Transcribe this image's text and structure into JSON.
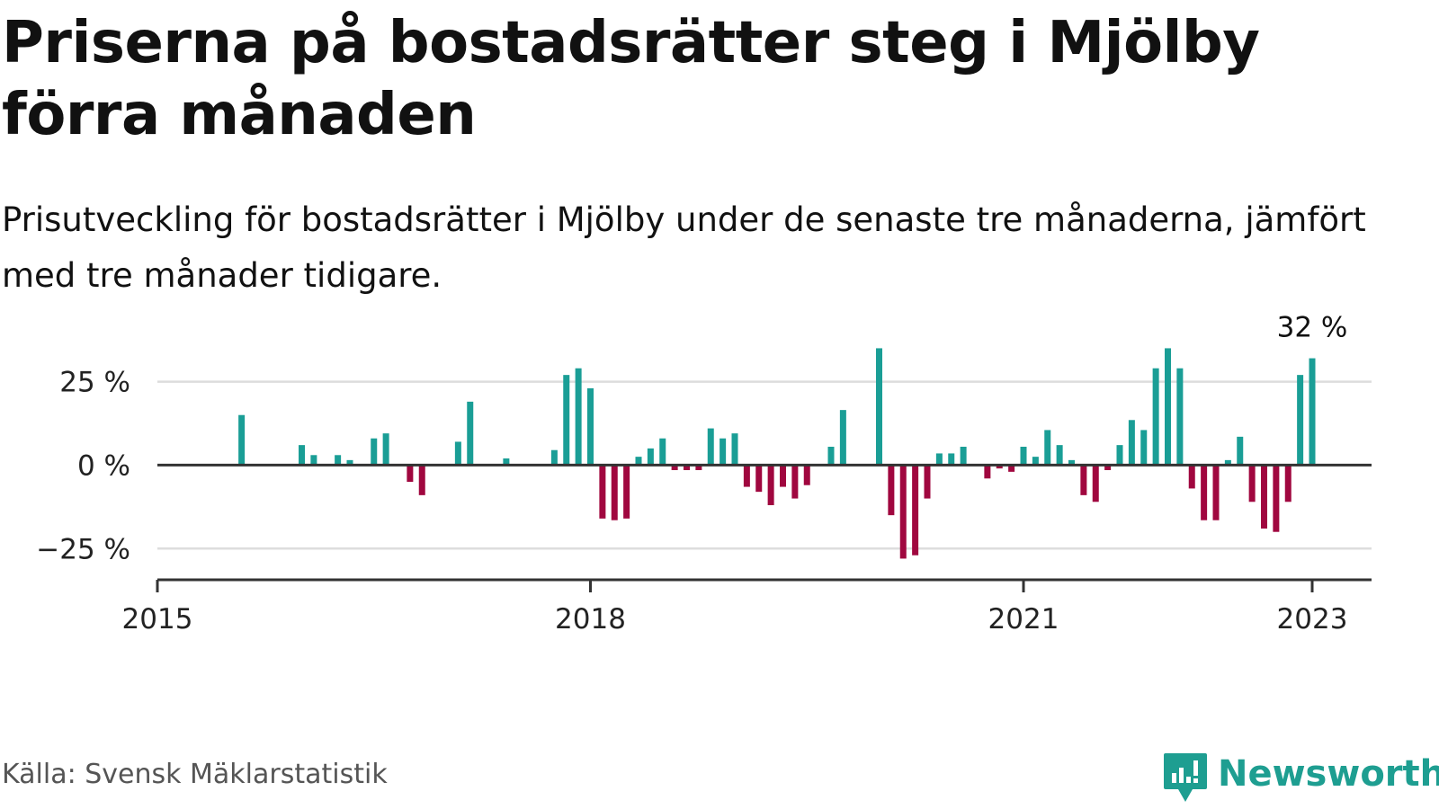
{
  "title": "Priserna på bostadsrätter steg i Mjölby förra månaden",
  "subtitle": "Prisutveckling för bostadsrätter i Mjölby under de senaste tre månaderna, jämfört med tre månader tidigare.",
  "source": "Källa: Svensk Mäklarstatistik",
  "brand": {
    "name": "Newsworthy",
    "icon": "newsworthy-logo-icon"
  },
  "colors": {
    "positive": "#1a9e96",
    "negative": "#a0073f",
    "grid": "#dddddd",
    "axis": "#333333",
    "brand": "#1e9e91"
  },
  "chart_data": {
    "type": "bar",
    "ylabel": "",
    "xlabel": "",
    "ylim": [
      -33,
      37
    ],
    "yticks": [
      {
        "value": 25,
        "label": "25 %"
      },
      {
        "value": 0,
        "label": "0 %"
      },
      {
        "value": -25,
        "label": "−25 %"
      }
    ],
    "xticks": [
      {
        "value": "2015-01",
        "label": "2015"
      },
      {
        "value": "2018-01",
        "label": "2018"
      },
      {
        "value": "2021-01",
        "label": "2021"
      },
      {
        "value": "2023-01",
        "label": "2023"
      }
    ],
    "x_start": "2015-01",
    "x_end": "2023-05",
    "grid": "horizontal",
    "annotation": {
      "label": "32 %",
      "at": "2023-01"
    },
    "series": [
      {
        "values": [
          {
            "x": "2015-08",
            "y": 15
          },
          {
            "x": "2016-01",
            "y": 6
          },
          {
            "x": "2016-02",
            "y": 3
          },
          {
            "x": "2016-04",
            "y": 3
          },
          {
            "x": "2016-05",
            "y": 1.5
          },
          {
            "x": "2016-07",
            "y": 8
          },
          {
            "x": "2016-08",
            "y": 9.5
          },
          {
            "x": "2016-10",
            "y": -5
          },
          {
            "x": "2016-11",
            "y": -9
          },
          {
            "x": "2017-02",
            "y": 7
          },
          {
            "x": "2017-03",
            "y": 19
          },
          {
            "x": "2017-06",
            "y": 2
          },
          {
            "x": "2017-10",
            "y": 4.5
          },
          {
            "x": "2017-11",
            "y": 27
          },
          {
            "x": "2017-12",
            "y": 29
          },
          {
            "x": "2018-01",
            "y": 23
          },
          {
            "x": "2018-02",
            "y": -16
          },
          {
            "x": "2018-03",
            "y": -16.5
          },
          {
            "x": "2018-04",
            "y": -16
          },
          {
            "x": "2018-05",
            "y": 2.5
          },
          {
            "x": "2018-06",
            "y": 5
          },
          {
            "x": "2018-07",
            "y": 8
          },
          {
            "x": "2018-08",
            "y": -1.5
          },
          {
            "x": "2018-09",
            "y": -1.5
          },
          {
            "x": "2018-10",
            "y": -1.5
          },
          {
            "x": "2018-11",
            "y": 11
          },
          {
            "x": "2018-12",
            "y": 8
          },
          {
            "x": "2019-01",
            "y": 9.5
          },
          {
            "x": "2019-02",
            "y": -6.5
          },
          {
            "x": "2019-03",
            "y": -8
          },
          {
            "x": "2019-04",
            "y": -12
          },
          {
            "x": "2019-05",
            "y": -6.5
          },
          {
            "x": "2019-06",
            "y": -10
          },
          {
            "x": "2019-07",
            "y": -6
          },
          {
            "x": "2019-09",
            "y": 5.5
          },
          {
            "x": "2019-10",
            "y": 16.5
          },
          {
            "x": "2020-01",
            "y": 35
          },
          {
            "x": "2020-02",
            "y": -15
          },
          {
            "x": "2020-03",
            "y": -28
          },
          {
            "x": "2020-04",
            "y": -27
          },
          {
            "x": "2020-05",
            "y": -10
          },
          {
            "x": "2020-06",
            "y": 3.5
          },
          {
            "x": "2020-07",
            "y": 3.5
          },
          {
            "x": "2020-08",
            "y": 5.5
          },
          {
            "x": "2020-10",
            "y": -4
          },
          {
            "x": "2020-11",
            "y": -1
          },
          {
            "x": "2020-12",
            "y": -2
          },
          {
            "x": "2021-01",
            "y": 5.5
          },
          {
            "x": "2021-02",
            "y": 2.5
          },
          {
            "x": "2021-03",
            "y": 10.5
          },
          {
            "x": "2021-04",
            "y": 6
          },
          {
            "x": "2021-05",
            "y": 1.5
          },
          {
            "x": "2021-06",
            "y": -9
          },
          {
            "x": "2021-07",
            "y": -11
          },
          {
            "x": "2021-08",
            "y": -1.5
          },
          {
            "x": "2021-09",
            "y": 6
          },
          {
            "x": "2021-10",
            "y": 13.5
          },
          {
            "x": "2021-11",
            "y": 10.5
          },
          {
            "x": "2021-12",
            "y": 29
          },
          {
            "x": "2022-01",
            "y": 35
          },
          {
            "x": "2022-02",
            "y": 29
          },
          {
            "x": "2022-03",
            "y": -7
          },
          {
            "x": "2022-04",
            "y": -16.5
          },
          {
            "x": "2022-05",
            "y": -16.5
          },
          {
            "x": "2022-06",
            "y": 1.5
          },
          {
            "x": "2022-07",
            "y": 8.5
          },
          {
            "x": "2022-08",
            "y": -11
          },
          {
            "x": "2022-09",
            "y": -19
          },
          {
            "x": "2022-10",
            "y": -20
          },
          {
            "x": "2022-11",
            "y": -11
          },
          {
            "x": "2022-12",
            "y": 27
          },
          {
            "x": "2023-01",
            "y": 32
          }
        ]
      }
    ]
  }
}
